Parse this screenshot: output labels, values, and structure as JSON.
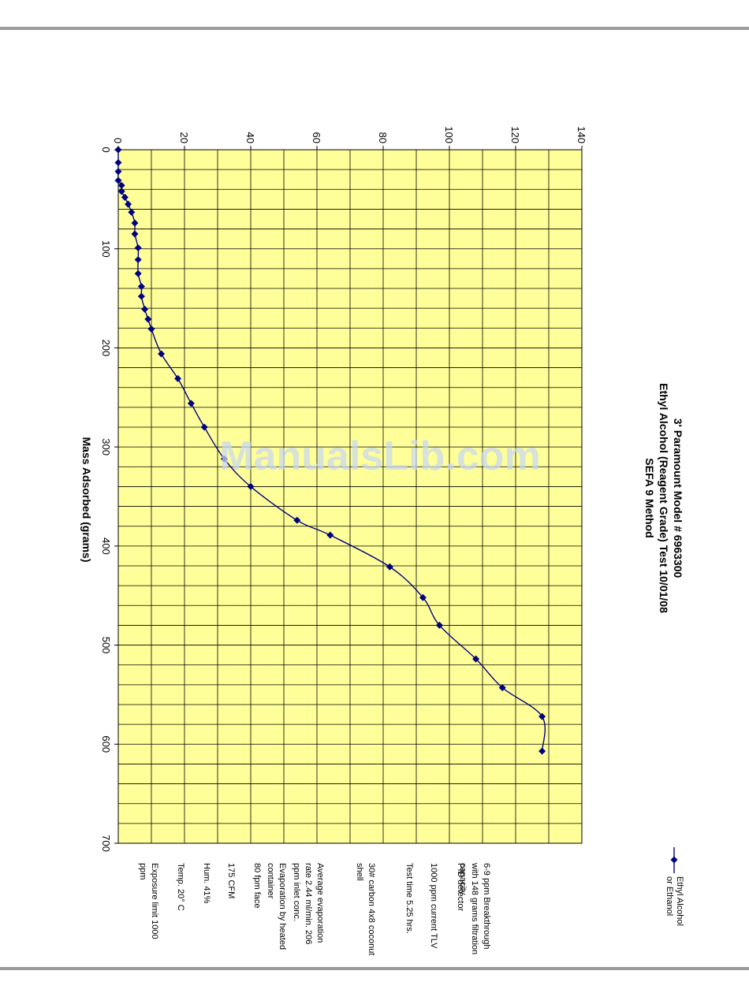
{
  "colors": {
    "plot_bg": "#ffff99",
    "line": "#000080",
    "grid": "#000000",
    "rule": "#9b9b9b",
    "watermark": "#c9d9f0"
  },
  "watermark": "ManualsLib.com",
  "notes": [
    "Exposure limit 1000 ppm",
    "Temp. 20° C",
    "Hum. 41%",
    "175 CFM",
    "80 fpm face",
    "Evaporation by heated container",
    "Average evaporation rate 2.44 ml/min. 206 ppm inlet conc.",
    "30# carbon 4x8 coconut shell",
    "Test time 5.25 hrs.",
    "1000 ppm current TLV",
    "PID detector",
    "6-9 ppm Breakthrough with 148 grams filtration capacity"
  ],
  "chart_data": {
    "type": "line",
    "title": [
      "3' Paramount Model # 6963300",
      "Ethyl Alcohol (Reagent Grade) Test  10/01/08",
      "SEFA 9 Method"
    ],
    "xlabel": "Mass Adsorbed (grams)",
    "ylabel": "",
    "xlim": [
      0,
      700
    ],
    "ylim": [
      0,
      140
    ],
    "x_ticks": [
      0,
      100,
      200,
      300,
      400,
      500,
      600,
      700
    ],
    "y_ticks": [
      0,
      20,
      40,
      60,
      80,
      100,
      120,
      140
    ],
    "legend": "top-right",
    "grid": true,
    "series": [
      {
        "name": "Ethyl Alcohol or Ethanol",
        "x": [
          0,
          13,
          22,
          31,
          36,
          42,
          48,
          55,
          63,
          74,
          85,
          99,
          111,
          125,
          138,
          148,
          161,
          171,
          181,
          206,
          231,
          256,
          280,
          312,
          340,
          374,
          389,
          421,
          452,
          480,
          514,
          543,
          572,
          607
        ],
        "y": [
          0,
          0,
          0,
          0,
          1,
          1,
          2,
          3,
          4,
          5,
          5,
          6,
          6,
          6,
          7,
          7,
          8,
          9,
          10,
          13,
          18,
          22,
          26,
          32,
          40,
          54,
          64,
          82,
          92,
          97,
          108,
          116,
          128,
          128
        ]
      }
    ]
  }
}
